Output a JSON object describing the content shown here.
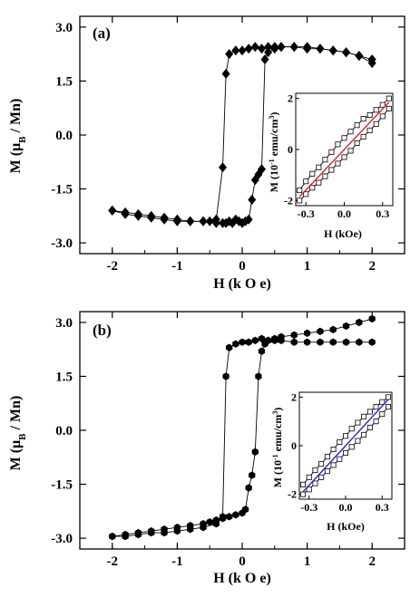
{
  "chart_data": [
    {
      "type": "scatter",
      "panel_label": "(a)",
      "xlabel": "H  (k O e)",
      "ylabel": "M (μB / Mn)",
      "xlim": [
        -2.5,
        2.5
      ],
      "ylim": [
        -3.3,
        3.3
      ],
      "xticks": [
        "-2",
        "-1",
        "0",
        "1",
        "2"
      ],
      "yticks": [
        "3.0",
        "1.5",
        "0.0",
        "-1.5",
        "-3.0"
      ],
      "marker": "diamond",
      "series": [
        {
          "x": [
            -2.0,
            -1.8,
            -1.6,
            -1.4,
            -1.2,
            -1.0,
            -0.8,
            -0.6,
            -0.5,
            -0.4,
            -0.3,
            -0.25,
            -0.2,
            -0.15,
            -0.1,
            -0.05,
            0.0,
            0.05,
            0.1,
            0.15,
            0.2,
            0.25,
            0.3,
            0.35,
            0.4,
            0.5,
            0.6,
            0.8,
            1.0,
            1.2,
            1.4,
            1.6,
            1.8,
            2.0
          ],
          "y": [
            -2.1,
            -2.2,
            -2.25,
            -2.3,
            -2.35,
            -2.4,
            -2.4,
            -2.4,
            -2.4,
            -2.45,
            -2.45,
            -2.45,
            -2.4,
            -2.45,
            -2.35,
            -2.4,
            -2.45,
            -2.4,
            -2.35,
            -1.8,
            -1.25,
            -1.1,
            -0.95,
            2.1,
            2.3,
            2.4,
            2.45,
            2.45,
            2.45,
            2.4,
            2.35,
            2.3,
            2.2,
            2.1
          ]
        },
        {
          "x": [
            2.0,
            1.8,
            1.6,
            1.4,
            1.2,
            1.0,
            0.8,
            0.6,
            0.5,
            0.4,
            0.3,
            0.2,
            0.1,
            0.0,
            -0.1,
            -0.2,
            -0.25,
            -0.3,
            -0.4,
            -0.6,
            -0.8,
            -1.0,
            -1.2,
            -1.4,
            -1.6,
            -1.8,
            -2.0
          ],
          "y": [
            2.0,
            2.2,
            2.3,
            2.35,
            2.4,
            2.4,
            2.45,
            2.45,
            2.45,
            2.45,
            2.4,
            2.45,
            2.4,
            2.35,
            2.35,
            2.25,
            1.7,
            -0.9,
            -2.35,
            -2.4,
            -2.4,
            -2.35,
            -2.3,
            -2.25,
            -2.2,
            -2.15,
            -2.1
          ]
        }
      ],
      "inset": {
        "xlabel": "H (kOe)",
        "ylabel": "M (10-1 emu/cm3)",
        "xlim": [
          -0.38,
          0.38
        ],
        "ylim": [
          -2.2,
          2.2
        ],
        "xticks": [
          "-0.3",
          "0.0",
          "0.3"
        ],
        "yticks": [
          "2",
          "0",
          "-2"
        ],
        "loop_color": "#000000",
        "line_color": "#e02020",
        "upper_branch": {
          "x": [
            -0.35,
            -0.3,
            -0.25,
            -0.2,
            -0.15,
            -0.1,
            -0.05,
            0.0,
            0.05,
            0.1,
            0.15,
            0.2,
            0.25,
            0.3,
            0.35
          ],
          "y": [
            -1.6,
            -1.25,
            -0.95,
            -0.7,
            -0.4,
            -0.1,
            0.2,
            0.45,
            0.7,
            0.95,
            1.2,
            1.35,
            1.55,
            1.75,
            2.0
          ]
        },
        "lower_branch": {
          "x": [
            -0.35,
            -0.3,
            -0.25,
            -0.2,
            -0.15,
            -0.1,
            -0.05,
            0.0,
            0.05,
            0.1,
            0.15,
            0.2,
            0.25,
            0.3,
            0.35
          ],
          "y": [
            -2.0,
            -1.75,
            -1.5,
            -1.3,
            -1.05,
            -0.8,
            -0.55,
            -0.3,
            -0.05,
            0.25,
            0.5,
            0.75,
            1.0,
            1.3,
            1.6
          ]
        },
        "line": {
          "x": [
            -0.35,
            0.35
          ],
          "y": [
            -1.85,
            1.85
          ]
        }
      }
    },
    {
      "type": "scatter",
      "panel_label": "(b)",
      "xlabel": "H  (k O e)",
      "ylabel": "M (μB / Mn)",
      "xlim": [
        -2.5,
        2.5
      ],
      "ylim": [
        -3.3,
        3.3
      ],
      "xticks": [
        "-2",
        "-1",
        "0",
        "1",
        "2"
      ],
      "yticks": [
        "3.0",
        "1.5",
        "0.0",
        "-1.5",
        "-3.0"
      ],
      "marker": "hexagon",
      "series": [
        {
          "x": [
            -2.0,
            -1.8,
            -1.6,
            -1.4,
            -1.2,
            -1.0,
            -0.8,
            -0.6,
            -0.5,
            -0.4,
            -0.3,
            -0.2,
            -0.1,
            0.0,
            0.05,
            0.1,
            0.15,
            0.2,
            0.25,
            0.3,
            0.35,
            0.4,
            0.5,
            0.6,
            0.8,
            1.0,
            1.2,
            1.4,
            1.6,
            1.8,
            2.0
          ],
          "y": [
            -2.95,
            -2.9,
            -2.85,
            -2.8,
            -2.75,
            -2.7,
            -2.65,
            -2.6,
            -2.55,
            -2.5,
            -2.45,
            -2.4,
            -2.35,
            -2.3,
            -2.2,
            -1.6,
            -1.25,
            -0.6,
            1.5,
            2.2,
            2.4,
            2.5,
            2.55,
            2.6,
            2.65,
            2.7,
            2.75,
            2.8,
            2.9,
            3.0,
            3.1
          ]
        },
        {
          "x": [
            2.0,
            1.8,
            1.6,
            1.4,
            1.2,
            1.0,
            0.8,
            0.6,
            0.5,
            0.4,
            0.3,
            0.2,
            0.1,
            0.0,
            -0.1,
            -0.2,
            -0.25,
            -0.3,
            -0.4,
            -0.6,
            -0.8,
            -1.0,
            -1.2,
            -1.4,
            -1.6,
            -1.8,
            -2.0
          ],
          "y": [
            2.45,
            2.45,
            2.45,
            2.45,
            2.45,
            2.45,
            2.45,
            2.5,
            2.5,
            2.5,
            2.55,
            2.5,
            2.45,
            2.45,
            2.4,
            2.3,
            1.5,
            -2.4,
            -2.6,
            -2.7,
            -2.75,
            -2.8,
            -2.85,
            -2.85,
            -2.9,
            -2.95,
            -2.95
          ]
        }
      ],
      "inset": {
        "xlabel": "H (kOe)",
        "ylabel": "M (10-1 emu/cm3)",
        "xlim": [
          -0.38,
          0.38
        ],
        "ylim": [
          -2.2,
          2.2
        ],
        "xticks": [
          "-0.3",
          "0.0",
          "0.3"
        ],
        "yticks": [
          "2",
          "0",
          "-2"
        ],
        "loop_color": "#000000",
        "line_color": "#2020d0",
        "upper_branch": {
          "x": [
            -0.35,
            -0.3,
            -0.25,
            -0.2,
            -0.15,
            -0.1,
            -0.05,
            0.0,
            0.05,
            0.1,
            0.15,
            0.2,
            0.25,
            0.3,
            0.35
          ],
          "y": [
            -1.6,
            -1.3,
            -1.0,
            -0.75,
            -0.45,
            -0.15,
            0.15,
            0.4,
            0.7,
            0.95,
            1.2,
            1.4,
            1.6,
            1.8,
            2.0
          ]
        },
        "lower_branch": {
          "x": [
            -0.35,
            -0.3,
            -0.25,
            -0.2,
            -0.15,
            -0.1,
            -0.05,
            0.0,
            0.05,
            0.1,
            0.15,
            0.2,
            0.25,
            0.3,
            0.35
          ],
          "y": [
            -2.0,
            -1.8,
            -1.55,
            -1.3,
            -1.05,
            -0.8,
            -0.55,
            -0.3,
            -0.05,
            0.2,
            0.45,
            0.75,
            1.0,
            1.3,
            1.6
          ]
        },
        "line": {
          "x": [
            -0.35,
            0.35
          ],
          "y": [
            -1.9,
            1.9
          ]
        }
      }
    }
  ]
}
